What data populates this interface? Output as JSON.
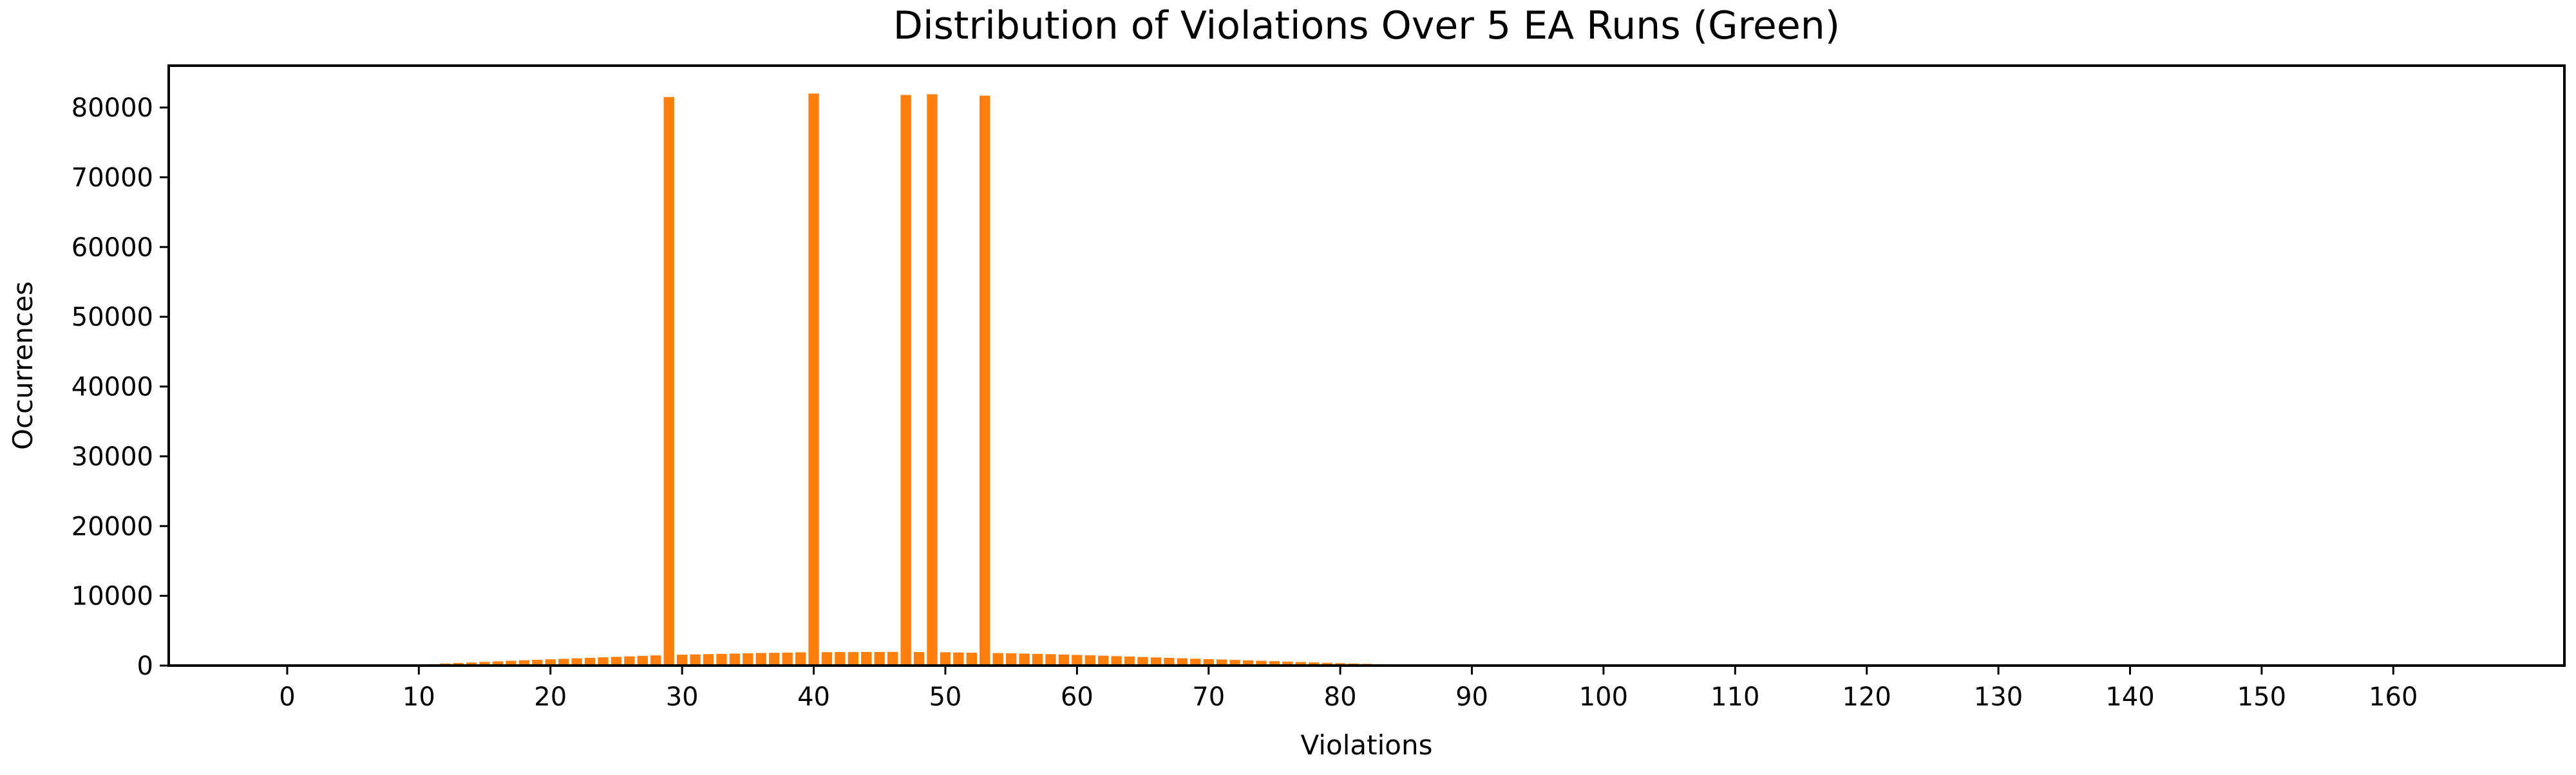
{
  "chart_data": {
    "type": "bar",
    "title": "Distribution of Violations Over 5 EA Runs (Green)",
    "xlabel": "Violations",
    "ylabel": "Occurrences",
    "xlim": [
      -9,
      173
    ],
    "ylim": [
      0,
      86000
    ],
    "xticks": [
      0,
      10,
      20,
      30,
      40,
      50,
      60,
      70,
      80,
      90,
      100,
      110,
      120,
      130,
      140,
      150,
      160
    ],
    "yticks": [
      0,
      10000,
      20000,
      30000,
      40000,
      50000,
      60000,
      70000,
      80000
    ],
    "color": "#ff7f0e",
    "grid": false,
    "x": [
      9,
      10,
      11,
      12,
      13,
      14,
      15,
      16,
      17,
      18,
      19,
      20,
      21,
      22,
      23,
      24,
      25,
      26,
      27,
      28,
      29,
      30,
      31,
      32,
      33,
      34,
      35,
      36,
      37,
      38,
      39,
      40,
      41,
      42,
      43,
      44,
      45,
      46,
      47,
      48,
      49,
      50,
      51,
      52,
      53,
      54,
      55,
      56,
      57,
      58,
      59,
      60,
      61,
      62,
      63,
      64,
      65,
      66,
      67,
      68,
      69,
      70,
      71,
      72,
      73,
      74,
      75,
      76,
      77,
      78,
      79,
      80,
      81,
      82,
      83,
      84,
      85,
      86,
      87,
      88,
      89,
      90
    ],
    "values": [
      50,
      120,
      200,
      300,
      380,
      450,
      530,
      610,
      690,
      760,
      830,
      900,
      970,
      1040,
      1110,
      1180,
      1250,
      1320,
      1390,
      1460,
      81500,
      1560,
      1600,
      1640,
      1680,
      1720,
      1760,
      1800,
      1830,
      1860,
      1900,
      82000,
      1920,
      1930,
      1940,
      1950,
      1950,
      1960,
      81800,
      1940,
      81900,
      1910,
      1880,
      1850,
      81700,
      1790,
      1760,
      1720,
      1680,
      1630,
      1580,
      1530,
      1470,
      1410,
      1350,
      1290,
      1230,
      1170,
      1110,
      1050,
      990,
      930,
      870,
      810,
      750,
      690,
      630,
      570,
      510,
      450,
      400,
      350,
      300,
      250,
      200,
      160,
      120,
      90,
      60,
      40,
      20,
      10
    ]
  }
}
